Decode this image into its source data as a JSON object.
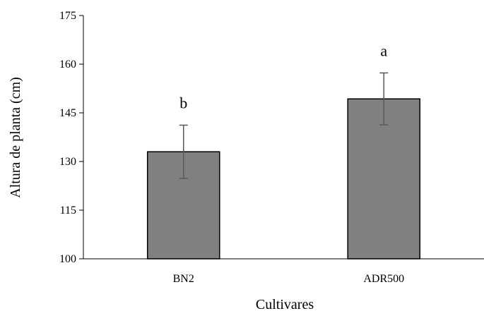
{
  "chart_data": {
    "type": "bar",
    "title": "",
    "xlabel": "Cultivares",
    "ylabel": "Altura de planta (cm)",
    "categories": [
      "BN2",
      "ADR500"
    ],
    "values": [
      133,
      149.3
    ],
    "error": [
      8.2,
      8.0
    ],
    "annotations": [
      "b",
      "a"
    ],
    "ylim": [
      100,
      175
    ],
    "yticks": [
      100,
      115,
      130,
      145,
      160,
      175
    ],
    "grid": false,
    "legend": "none",
    "colors": {
      "bar": "#808080",
      "bar_stroke": "#000000",
      "error_bar": "#595959",
      "axis": "#000000"
    }
  }
}
